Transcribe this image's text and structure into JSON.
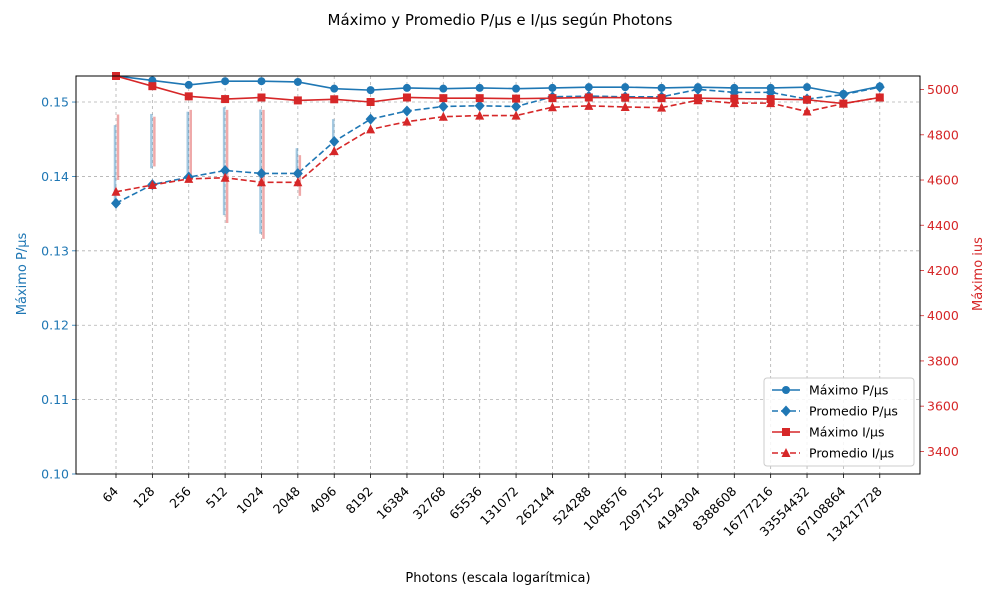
{
  "chart_data": {
    "type": "line",
    "title": "Máximo y Promedio P/µs e I/µs según Photons",
    "xlabel": "Photons (escala logarítmica)",
    "ylabel_left": "Máximo P/µs",
    "ylabel_right": "Máximo ius",
    "x_scale": "log2",
    "categories": [
      "64",
      "128",
      "256",
      "512",
      "1024",
      "2048",
      "4096",
      "8192",
      "16384",
      "32768",
      "65536",
      "131072",
      "262144",
      "524288",
      "1048576",
      "2097152",
      "4194304",
      "8388608",
      "16777216",
      "33554432",
      "67108864",
      "134217728"
    ],
    "ylim_left": [
      0.1,
      0.1535
    ],
    "ylim_right": [
      3300,
      5060
    ],
    "yticks_left": [
      "0.10",
      "0.11",
      "0.12",
      "0.13",
      "0.14",
      "0.15"
    ],
    "yticks_right": [
      "3400",
      "3600",
      "3800",
      "4000",
      "4200",
      "4400",
      "4600",
      "4800",
      "5000"
    ],
    "grid": true,
    "legend_position": "lower-right",
    "colors": {
      "p": "#1f77b4",
      "i": "#d62728",
      "grid": "#b0b0b0"
    },
    "series": [
      {
        "name": "Máximo P/µs",
        "axis": "left",
        "style": "solid",
        "marker": "circle",
        "color": "#1f77b4",
        "values": [
          0.1535,
          0.1529,
          0.1523,
          0.1528,
          0.1528,
          0.1527,
          0.1518,
          0.1516,
          0.1519,
          0.1518,
          0.1519,
          0.1518,
          0.1519,
          0.152,
          0.152,
          0.1519,
          0.152,
          0.1519,
          0.1519,
          0.152,
          0.1511,
          0.1521
        ]
      },
      {
        "name": "Promedio P/µs",
        "axis": "left",
        "style": "dashed",
        "marker": "diamond",
        "color": "#1f77b4",
        "values": [
          0.1364,
          0.1389,
          0.1399,
          0.1408,
          0.1404,
          0.1404,
          0.1447,
          0.1477,
          0.1488,
          0.1494,
          0.1495,
          0.1494,
          0.1507,
          0.1508,
          0.1507,
          0.1507,
          0.1517,
          0.1513,
          0.1513,
          0.1504,
          0.151,
          0.152
        ]
      },
      {
        "name": "Máximo I/µs",
        "axis": "right",
        "style": "solid",
        "marker": "square",
        "color": "#d62728",
        "values": [
          5060,
          5015,
          4970,
          4958,
          4965,
          4952,
          4957,
          4945,
          4965,
          4962,
          4962,
          4960,
          4962,
          4965,
          4964,
          4962,
          4962,
          4960,
          4958,
          4955,
          4938,
          4965
        ]
      },
      {
        "name": "Promedio I/µs",
        "axis": "right",
        "style": "dashed",
        "marker": "triangle",
        "color": "#d62728",
        "values": [
          4548,
          4578,
          4605,
          4610,
          4590,
          4590,
          4728,
          4824,
          4858,
          4880,
          4885,
          4885,
          4922,
          4928,
          4923,
          4920,
          4953,
          4940,
          4940,
          4903,
          4938,
          4965
        ]
      }
    ],
    "error_bars_p": [
      {
        "x": "64",
        "low": 0.1364,
        "high": 0.1469
      },
      {
        "x": "128",
        "low": 0.1411,
        "high": 0.1484
      },
      {
        "x": "256",
        "low": 0.1402,
        "high": 0.1487
      },
      {
        "x": "512",
        "low": 0.1348,
        "high": 0.1493
      },
      {
        "x": "1024",
        "low": 0.1323,
        "high": 0.149
      },
      {
        "x": "2048",
        "low": 0.1404,
        "high": 0.1438
      },
      {
        "x": "4096",
        "low": 0.1447,
        "high": 0.1477
      }
    ],
    "error_bars_i": [
      {
        "x": "64",
        "low": 4600,
        "high": 4890
      },
      {
        "x": "128",
        "low": 4660,
        "high": 4880
      },
      {
        "x": "256",
        "low": 4605,
        "high": 4910
      },
      {
        "x": "512",
        "low": 4410,
        "high": 4910
      },
      {
        "x": "1024",
        "low": 4340,
        "high": 4910
      },
      {
        "x": "2048",
        "low": 4530,
        "high": 4710
      }
    ]
  }
}
